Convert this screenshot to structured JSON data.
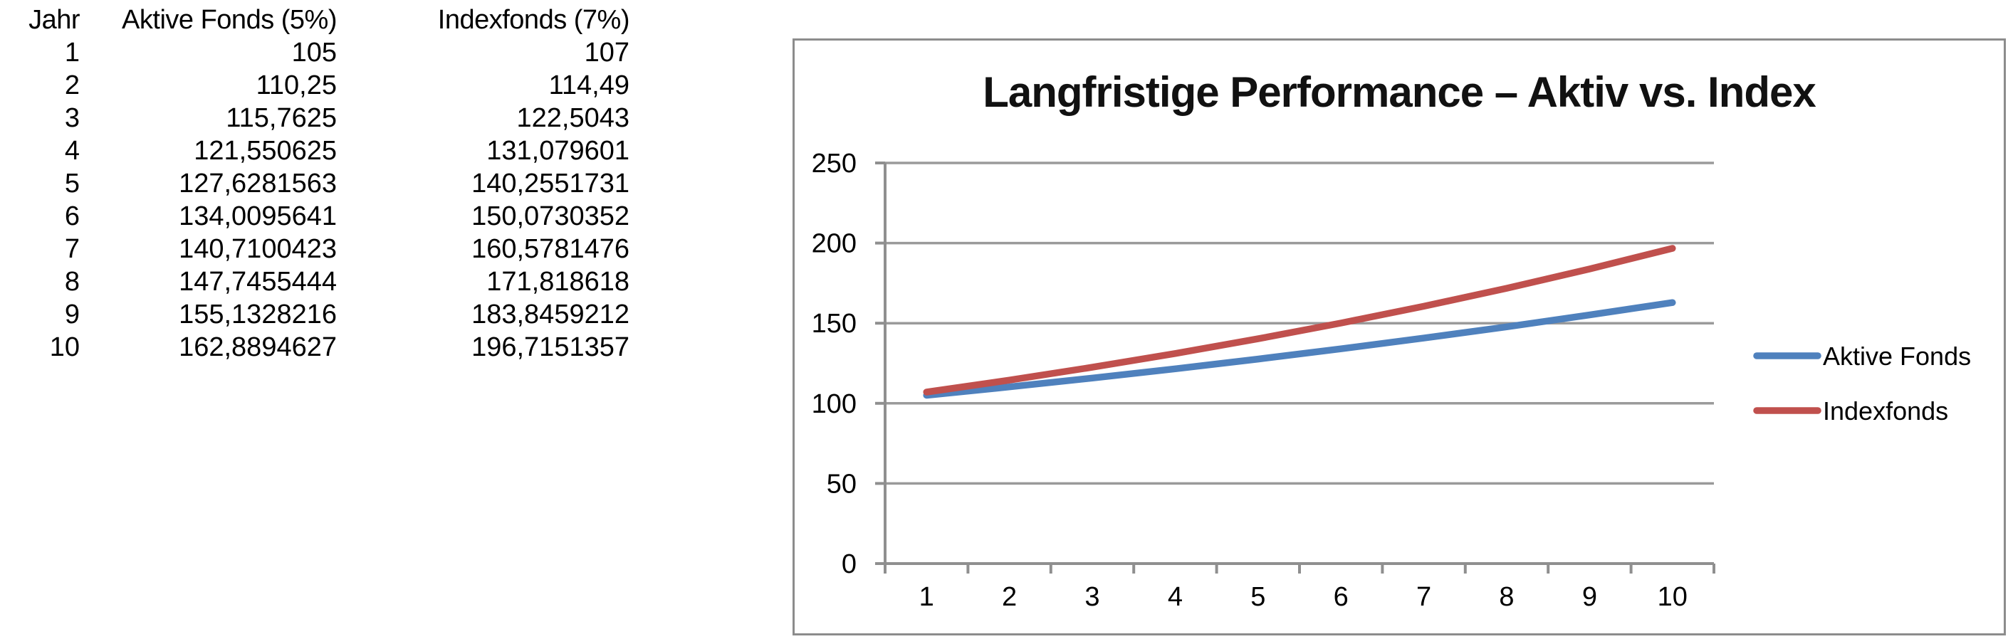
{
  "table": {
    "headers": [
      "Jahr",
      "Aktive Fonds (5%)",
      "Indexfonds (7%)"
    ],
    "rows": [
      [
        "1",
        "105",
        "107"
      ],
      [
        "2",
        "110,25",
        "114,49"
      ],
      [
        "3",
        "115,7625",
        "122,5043"
      ],
      [
        "4",
        "121,550625",
        "131,079601"
      ],
      [
        "5",
        "127,6281563",
        "140,2551731"
      ],
      [
        "6",
        "134,0095641",
        "150,0730352"
      ],
      [
        "7",
        "140,7100423",
        "160,5781476"
      ],
      [
        "8",
        "147,7455444",
        "171,818618"
      ],
      [
        "9",
        "155,1328216",
        "183,8459212"
      ],
      [
        "10",
        "162,8894627",
        "196,7151357"
      ]
    ]
  },
  "chart_data": {
    "type": "line",
    "title": "Langfristige Performance – Aktiv vs. Index",
    "xlabel": "",
    "ylabel": "",
    "x": [
      1,
      2,
      3,
      4,
      5,
      6,
      7,
      8,
      9,
      10
    ],
    "x_tick_labels": [
      "1",
      "2",
      "3",
      "4",
      "5",
      "6",
      "7",
      "8",
      "9",
      "10"
    ],
    "y_ticks": [
      0,
      50,
      100,
      150,
      200,
      250
    ],
    "y_tick_labels": [
      "0",
      "50",
      "100",
      "150",
      "200",
      "250"
    ],
    "ylim": [
      0,
      250
    ],
    "grid": true,
    "legend_position": "right",
    "series": [
      {
        "name": "Aktive Fonds",
        "color": "#4F81BD",
        "values": [
          105,
          110.25,
          115.7625,
          121.550625,
          127.6281563,
          134.0095641,
          140.7100423,
          147.7455444,
          155.1328216,
          162.8894627
        ]
      },
      {
        "name": "Indexfonds",
        "color": "#C0504D",
        "values": [
          107,
          114.49,
          122.5043,
          131.079601,
          140.2551731,
          150.0730352,
          160.5781476,
          171.818618,
          183.8459212,
          196.7151357
        ]
      }
    ],
    "colors": {
      "chart_border": "#8C8C8C",
      "grid_line": "#9A9A9A",
      "axis_line": "#8F8F8F",
      "title_text": "#111111"
    }
  }
}
